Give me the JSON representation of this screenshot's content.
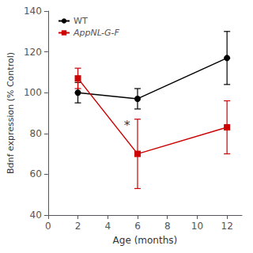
{
  "chart_data": {
    "type": "line",
    "x": [
      2,
      6,
      12
    ],
    "series": [
      {
        "name": "WT",
        "color": "#000000",
        "marker": "circle",
        "values": [
          100,
          97,
          117
        ],
        "errors": [
          5,
          5,
          13
        ]
      },
      {
        "name": "AppNL-G-F",
        "color": "#cc0000",
        "marker": "square",
        "values": [
          107,
          70,
          83
        ],
        "errors": [
          5,
          17,
          13
        ]
      }
    ],
    "xlabel": "Age (months)",
    "ylabel": "Bdnf expression (% Control)",
    "xlim": [
      0,
      13
    ],
    "ylim": [
      40,
      140
    ],
    "xticks": [
      0,
      2,
      4,
      6,
      8,
      10,
      12
    ],
    "yticks": [
      40,
      60,
      80,
      100,
      120,
      140
    ],
    "annotations": [
      {
        "text": "*",
        "x": 5.3,
        "y": 81
      }
    ],
    "legend": "upper left",
    "grid": false
  }
}
